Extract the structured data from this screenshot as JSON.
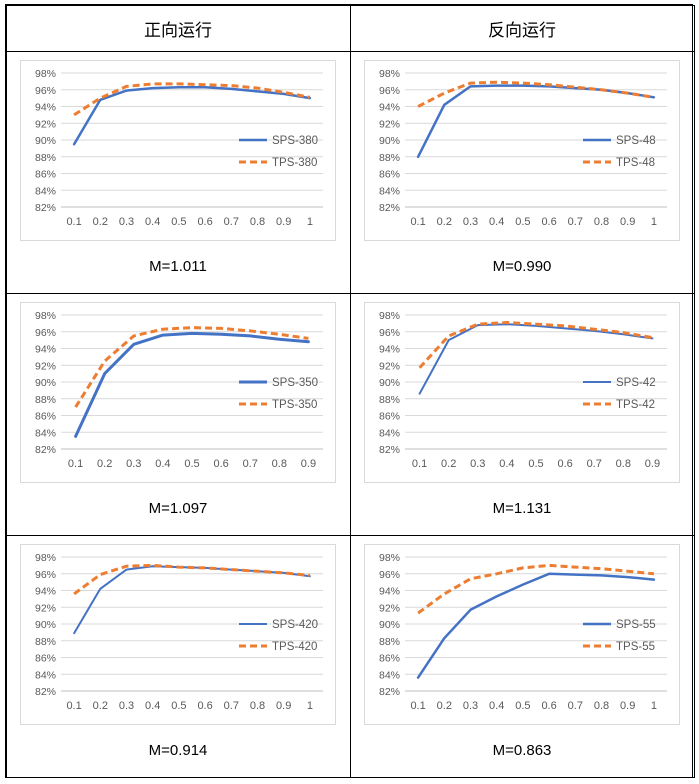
{
  "header": {
    "left": "正向运行",
    "right": "反向运行"
  },
  "chart_data": [
    {
      "type": "line",
      "x": [
        0.1,
        0.2,
        0.3,
        0.4,
        0.5,
        0.6,
        0.7,
        0.8,
        0.9,
        1
      ],
      "x_tick_labels": [
        "0.1",
        "0.2",
        "0.3",
        "0.4",
        "0.5",
        "0.6",
        "0.7",
        "0.8",
        "0.9",
        "1"
      ],
      "ylim": [
        82,
        98
      ],
      "y_ticks": [
        "82%",
        "84%",
        "86%",
        "88%",
        "90%",
        "92%",
        "94%",
        "96%",
        "98%"
      ],
      "grid": true,
      "legend": "right",
      "series": [
        {
          "name": "SPS-380",
          "color": "#4472c4",
          "dash": false,
          "width": 2.5,
          "values": [
            89.5,
            94.8,
            95.9,
            96.2,
            96.3,
            96.3,
            96.1,
            95.8,
            95.5,
            95.0
          ]
        },
        {
          "name": "TPS-380",
          "color": "#ed7d31",
          "dash": true,
          "width": 3,
          "values": [
            93.0,
            95.0,
            96.4,
            96.7,
            96.7,
            96.6,
            96.5,
            96.2,
            95.7,
            95.1
          ]
        }
      ],
      "caption": "M=1.011"
    },
    {
      "type": "line",
      "x": [
        0.1,
        0.2,
        0.3,
        0.4,
        0.5,
        0.6,
        0.7,
        0.8,
        0.9,
        1
      ],
      "x_tick_labels": [
        "0.1",
        "0.2",
        "0.3",
        "0.4",
        "0.5",
        "0.6",
        "0.7",
        "0.8",
        "0.9",
        "1"
      ],
      "ylim": [
        82,
        98
      ],
      "y_ticks": [
        "82%",
        "84%",
        "86%",
        "88%",
        "90%",
        "92%",
        "94%",
        "96%",
        "98%"
      ],
      "grid": true,
      "legend": "right",
      "series": [
        {
          "name": "SPS-48",
          "color": "#4472c4",
          "dash": false,
          "width": 2.5,
          "values": [
            88.0,
            94.2,
            96.4,
            96.5,
            96.5,
            96.4,
            96.2,
            96.0,
            95.6,
            95.1
          ]
        },
        {
          "name": "TPS-48",
          "color": "#ed7d31",
          "dash": true,
          "width": 3,
          "values": [
            94.0,
            95.6,
            96.8,
            96.9,
            96.8,
            96.6,
            96.3,
            96.0,
            95.6,
            95.1
          ]
        }
      ],
      "caption": "M=0.990"
    },
    {
      "type": "line",
      "x": [
        0.1,
        0.2,
        0.3,
        0.4,
        0.5,
        0.6,
        0.7,
        0.8,
        0.9
      ],
      "x_tick_labels": [
        "0.1",
        "0.2",
        "0.3",
        "0.4",
        "0.5",
        "0.6",
        "0.7",
        "0.8",
        "0.9"
      ],
      "ylim": [
        82,
        98
      ],
      "y_ticks": [
        "82%",
        "84%",
        "86%",
        "88%",
        "90%",
        "92%",
        "94%",
        "96%",
        "98%"
      ],
      "grid": true,
      "legend": "right",
      "series": [
        {
          "name": "SPS-350",
          "color": "#4472c4",
          "dash": false,
          "width": 3,
          "values": [
            83.5,
            91.0,
            94.5,
            95.6,
            95.8,
            95.7,
            95.5,
            95.1,
            94.8
          ]
        },
        {
          "name": "TPS-350",
          "color": "#ed7d31",
          "dash": true,
          "width": 3,
          "values": [
            87.0,
            92.5,
            95.5,
            96.3,
            96.5,
            96.4,
            96.1,
            95.7,
            95.2
          ]
        }
      ],
      "caption": "M=1.097"
    },
    {
      "type": "line",
      "x": [
        0.1,
        0.2,
        0.3,
        0.4,
        0.5,
        0.6,
        0.7,
        0.8,
        0.9
      ],
      "x_tick_labels": [
        "0.1",
        "0.2",
        "0.3",
        "0.4",
        "0.5",
        "0.6",
        "0.7",
        "0.8",
        "0.9"
      ],
      "ylim": [
        82,
        98
      ],
      "y_ticks": [
        "82%",
        "84%",
        "86%",
        "88%",
        "90%",
        "92%",
        "94%",
        "96%",
        "98%"
      ],
      "grid": true,
      "legend": "right",
      "series": [
        {
          "name": "SPS-42",
          "color": "#4472c4",
          "dash": false,
          "width": 2,
          "values": [
            88.6,
            95.0,
            96.8,
            96.9,
            96.7,
            96.4,
            96.1,
            95.7,
            95.2
          ]
        },
        {
          "name": "TPS-42",
          "color": "#ed7d31",
          "dash": true,
          "width": 3,
          "values": [
            91.7,
            95.5,
            96.9,
            97.1,
            96.9,
            96.7,
            96.3,
            95.9,
            95.3
          ]
        }
      ],
      "caption": "M=1.131"
    },
    {
      "type": "line",
      "x": [
        0.1,
        0.2,
        0.3,
        0.4,
        0.5,
        0.6,
        0.7,
        0.8,
        0.9,
        1
      ],
      "x_tick_labels": [
        "0.1",
        "0.2",
        "0.3",
        "0.4",
        "0.5",
        "0.6",
        "0.7",
        "0.8",
        "0.9",
        "1"
      ],
      "ylim": [
        82,
        98
      ],
      "y_ticks": [
        "82%",
        "84%",
        "86%",
        "88%",
        "90%",
        "92%",
        "94%",
        "96%",
        "98%"
      ],
      "grid": true,
      "legend": "right",
      "series": [
        {
          "name": "SPS-420",
          "color": "#4472c4",
          "dash": false,
          "width": 2,
          "values": [
            88.9,
            94.2,
            96.5,
            96.9,
            96.8,
            96.7,
            96.5,
            96.3,
            96.1,
            95.7
          ]
        },
        {
          "name": "TPS-420",
          "color": "#ed7d31",
          "dash": true,
          "width": 3,
          "values": [
            93.6,
            95.9,
            96.9,
            97.0,
            96.8,
            96.7,
            96.5,
            96.3,
            96.1,
            95.8
          ]
        }
      ],
      "caption": "M=0.914"
    },
    {
      "type": "line",
      "x": [
        0.1,
        0.2,
        0.3,
        0.4,
        0.5,
        0.6,
        0.7,
        0.8,
        0.9,
        1
      ],
      "x_tick_labels": [
        "0.1",
        "0.2",
        "0.3",
        "0.4",
        "0.5",
        "0.6",
        "0.7",
        "0.8",
        "0.9",
        "1"
      ],
      "ylim": [
        82,
        98
      ],
      "y_ticks": [
        "82%",
        "84%",
        "86%",
        "88%",
        "90%",
        "92%",
        "94%",
        "96%",
        "98%"
      ],
      "grid": true,
      "legend": "right",
      "series": [
        {
          "name": "SPS-55",
          "color": "#4472c4",
          "dash": false,
          "width": 2.5,
          "values": [
            83.6,
            88.3,
            91.7,
            93.3,
            94.7,
            96.0,
            95.9,
            95.8,
            95.6,
            95.3
          ]
        },
        {
          "name": "TPS-55",
          "color": "#ed7d31",
          "dash": true,
          "width": 3,
          "values": [
            91.3,
            93.6,
            95.4,
            96.0,
            96.7,
            97.0,
            96.8,
            96.6,
            96.3,
            96.0
          ]
        }
      ],
      "caption": "M=0.863"
    }
  ]
}
